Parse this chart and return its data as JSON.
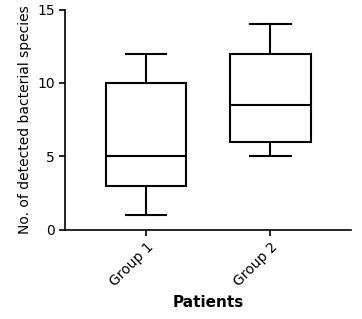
{
  "groups": [
    "Group 1",
    "Group 2"
  ],
  "xlabel": "Patients",
  "ylabel": "No. of detected bacterial species",
  "ylim": [
    0,
    15
  ],
  "yticks": [
    0,
    5,
    10,
    15
  ],
  "group1": {
    "whislo": 1,
    "q1": 3,
    "med": 5,
    "q3": 10,
    "whishi": 12
  },
  "group2": {
    "whislo": 5,
    "q1": 6,
    "med": 8.5,
    "q3": 12,
    "whishi": 14
  },
  "box_color": "#000000",
  "box_facecolor": "#ffffff",
  "linewidth": 1.5,
  "tick_label_fontsize": 10,
  "axis_label_fontsize": 10,
  "xlabel_fontsize": 11,
  "xlabel_fontweight": "bold",
  "box_width": 0.65,
  "positions": [
    1,
    2
  ],
  "xlim": [
    0.35,
    2.65
  ]
}
